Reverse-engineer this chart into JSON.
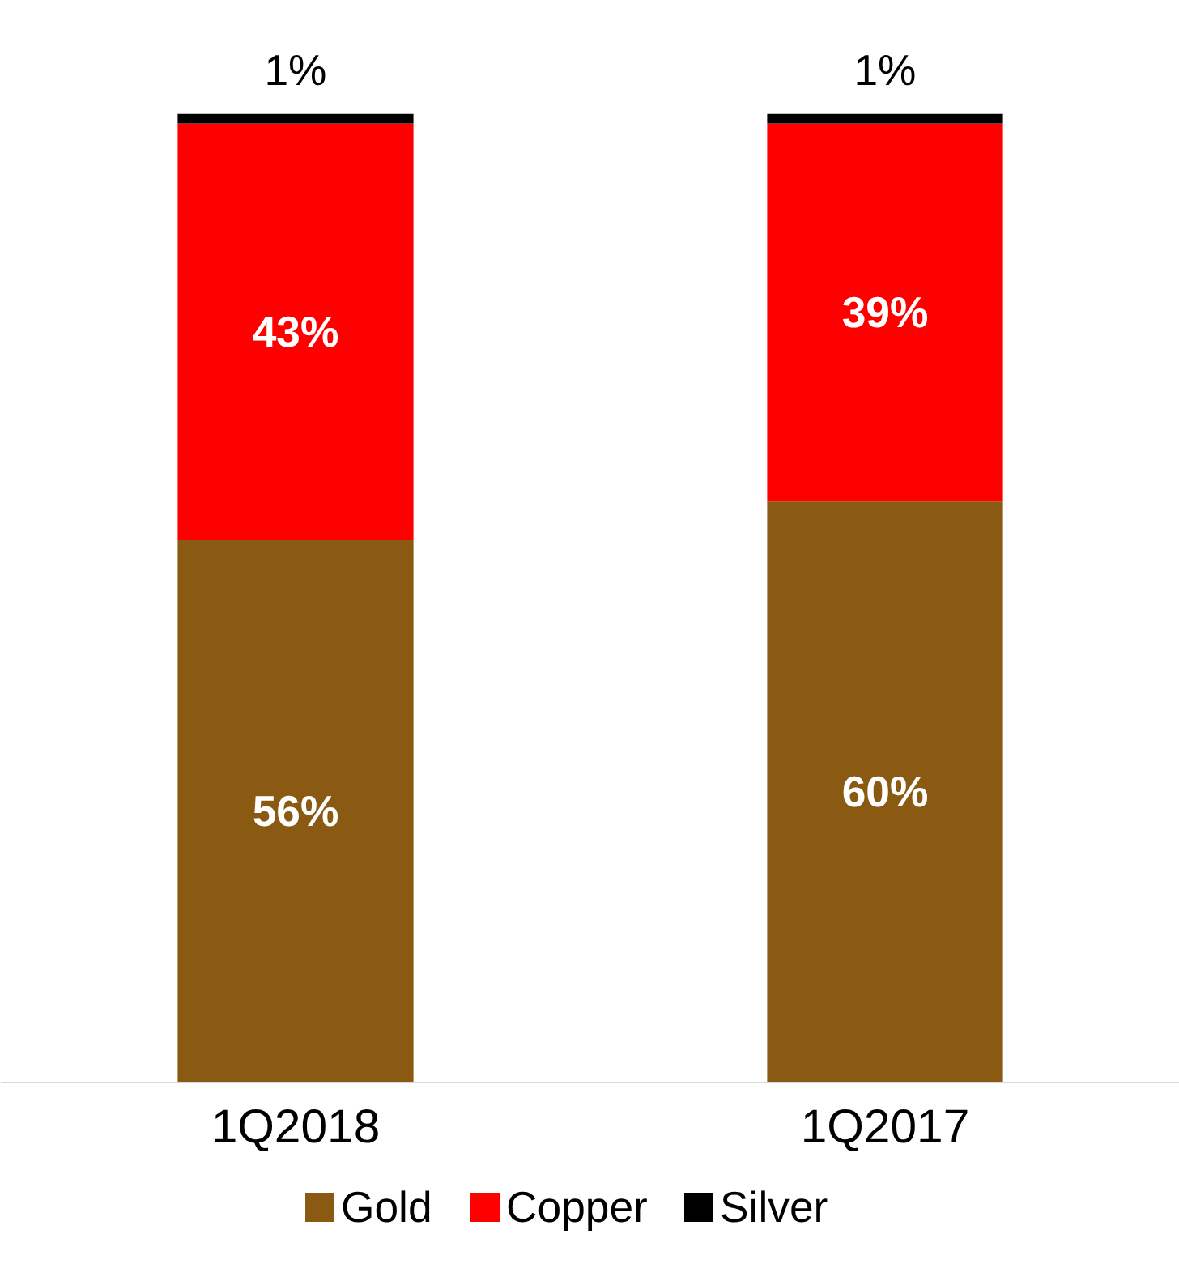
{
  "chart_data": {
    "type": "bar",
    "stacked": true,
    "tick_labels": "x",
    "categories": [
      "1Q2018",
      "1Q2017"
    ],
    "series": [
      {
        "name": "Gold",
        "color": "#8b5a12",
        "values": [
          56,
          60
        ],
        "value_labels": [
          "56%",
          "60%"
        ]
      },
      {
        "name": "Copper",
        "color": "#ff0000",
        "values": [
          43,
          39
        ],
        "value_labels": [
          "43%",
          "39%"
        ]
      },
      {
        "name": "Silver",
        "color": "#000000",
        "values": [
          1,
          1
        ],
        "value_labels": [
          "1%",
          "1%"
        ]
      }
    ],
    "legend": "bottom",
    "grid": false
  }
}
